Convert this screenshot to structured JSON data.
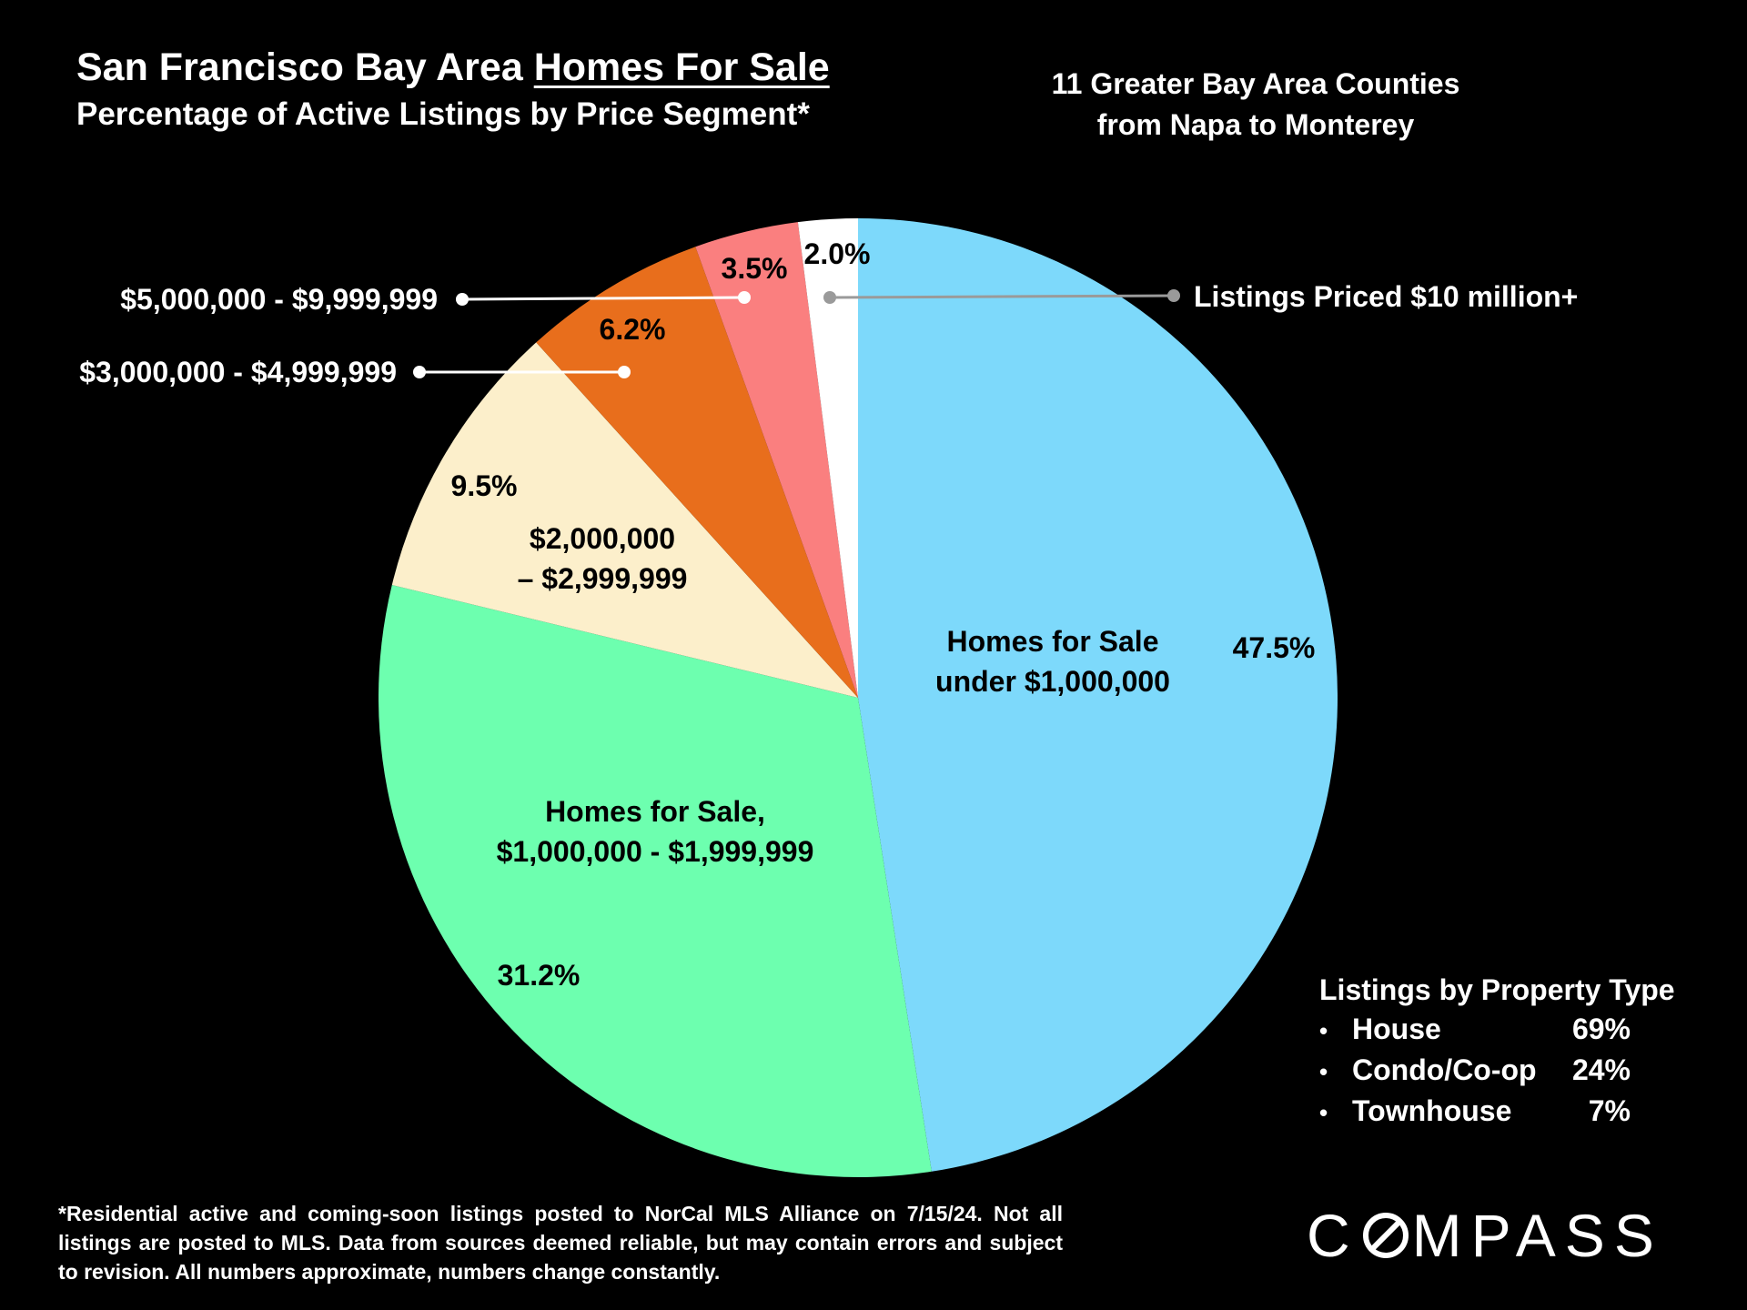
{
  "header": {
    "title_prefix": "San Francisco Bay Area ",
    "title_underlined": "Homes For Sale",
    "subtitle": "Percentage of Active Listings by Price Segment*",
    "region_line1": "11 Greater Bay Area Counties",
    "region_line2": "from Napa to Monterey"
  },
  "chart_data": {
    "type": "pie",
    "title": "San Francisco Bay Area Homes For Sale",
    "subtitle": "Percentage of Active Listings by Price Segment*",
    "unit": "%",
    "slices": [
      {
        "name": "Homes for Sale under $1,000,000",
        "label_lines": [
          "Homes for Sale",
          "under $1,000,000"
        ],
        "value": 47.5,
        "value_label": "47.5%",
        "color": "#7DD9FB"
      },
      {
        "name": "Homes for Sale, $1,000,000 - $1,999,999",
        "label_lines": [
          "Homes for Sale,",
          "$1,000,000 - $1,999,999"
        ],
        "value": 31.2,
        "value_label": "31.2%",
        "color": "#6DFFAF"
      },
      {
        "name": "$2,000,000 – $2,999,999",
        "label_lines": [
          "$2,000,000",
          "– $2,999,999"
        ],
        "value": 9.5,
        "value_label": "9.5%",
        "color": "#FCEFCB"
      },
      {
        "name": "$3,000,000 - $4,999,999",
        "label_lines": [
          "$3,000,000 - $4,999,999"
        ],
        "value": 6.2,
        "value_label": "6.2%",
        "color": "#E86E1C"
      },
      {
        "name": "$5,000,000 - $9,999,999",
        "label_lines": [
          "$5,000,000 - $9,999,999"
        ],
        "value": 3.5,
        "value_label": "3.5%",
        "color": "#FA7F7F"
      },
      {
        "name": "Listings Priced $10 million+",
        "label_lines": [
          "Listings Priced $10 million+"
        ],
        "value": 2.0,
        "value_label": "2.0%",
        "color": "#FFFFFF"
      }
    ]
  },
  "property_types": {
    "heading": "Listings by Property Type",
    "bullet": "•",
    "items": [
      {
        "type": "House",
        "pct": "69%"
      },
      {
        "type": "Condo/Co-op",
        "pct": "24%"
      },
      {
        "type": "Townhouse",
        "pct": "7%"
      }
    ]
  },
  "footnote": "*Residential active and coming-soon listings posted to NorCal MLS Alliance on 7/15/24. Not all listings are posted to MLS. Data from sources deemed reliable, but may contain errors and subject to revision. All numbers approximate, numbers change constantly.",
  "brand": {
    "left": "C",
    "right": "MPASS"
  }
}
